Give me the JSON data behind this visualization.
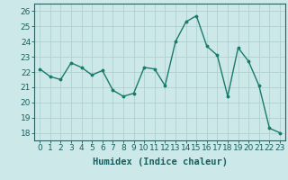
{
  "x": [
    0,
    1,
    2,
    3,
    4,
    5,
    6,
    7,
    8,
    9,
    10,
    11,
    12,
    13,
    14,
    15,
    16,
    17,
    18,
    19,
    20,
    21,
    22,
    23
  ],
  "y": [
    22.2,
    21.7,
    21.5,
    22.6,
    22.3,
    21.8,
    22.1,
    20.8,
    20.4,
    20.6,
    22.3,
    22.2,
    21.1,
    24.0,
    25.3,
    25.7,
    23.7,
    23.1,
    20.4,
    23.6,
    22.7,
    21.1,
    18.3,
    18.0
  ],
  "line_color": "#1a7a6e",
  "marker_color": "#1a7a6e",
  "bg_color": "#cce8e8",
  "grid_color": "#b0cfcf",
  "xlabel": "Humidex (Indice chaleur)",
  "ylabel_ticks": [
    18,
    19,
    20,
    21,
    22,
    23,
    24,
    25,
    26
  ],
  "xlim": [
    -0.5,
    23.5
  ],
  "ylim": [
    17.5,
    26.5
  ],
  "xlabel_fontsize": 7.5,
  "tick_fontsize": 6.5
}
